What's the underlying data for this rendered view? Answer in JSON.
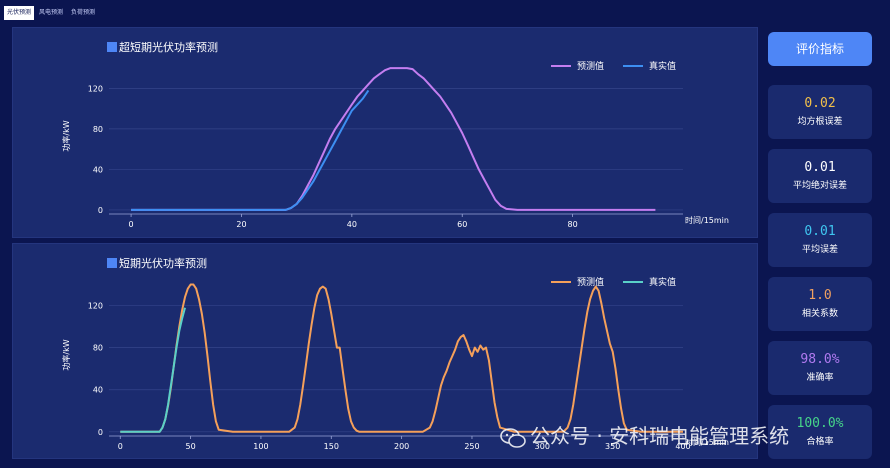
{
  "tabs": [
    "光伏预测",
    "风电预测",
    "负荷预测"
  ],
  "eval_button": "评价指标",
  "metrics": [
    {
      "value": "0.02",
      "label": "均方根误差",
      "color": "#f2c04a"
    },
    {
      "value": "0.01",
      "label": "平均绝对误差",
      "color": "#ffffff"
    },
    {
      "value": "0.01",
      "label": "平均误差",
      "color": "#3fc6f0"
    },
    {
      "value": "1.0",
      "label": "相关系数",
      "color": "#f0a060"
    },
    {
      "value": "98.0%",
      "label": "准确率",
      "color": "#b07af0"
    },
    {
      "value": "100.0%",
      "label": "合格率",
      "color": "#46d58a"
    }
  ],
  "watermark": "公众号 · 安科瑞电能管理系统",
  "colors": {
    "predict_top": "#c47ef0",
    "actual_top": "#3d8ff2",
    "predict_bottom": "#f5a05a",
    "actual_bottom": "#5ad0c8"
  },
  "chart_data": [
    {
      "type": "line",
      "title": "超短期光伏功率预测",
      "xlabel": "时间/15min",
      "ylabel": "功率/kW",
      "xlim": [
        -4,
        100
      ],
      "ylim": [
        -4,
        150
      ],
      "xticks": [
        0,
        20,
        40,
        60,
        80
      ],
      "yticks": [
        0,
        40,
        80,
        120
      ],
      "legend_position": "top-right",
      "series": [
        {
          "name": "预测值",
          "color": "#c47ef0",
          "x": [
            0,
            5,
            10,
            15,
            20,
            25,
            28,
            29,
            30,
            31,
            32,
            33,
            34,
            35,
            36,
            37,
            38,
            39,
            40,
            41,
            42,
            43,
            44,
            45,
            46,
            47,
            48,
            49,
            50,
            51,
            52,
            53,
            54,
            55,
            56,
            57,
            58,
            59,
            60,
            61,
            62,
            63,
            64,
            65,
            66,
            67,
            68,
            70,
            75,
            80,
            85,
            90,
            95
          ],
          "y": [
            0,
            0,
            0,
            0,
            0,
            0,
            0,
            2,
            6,
            14,
            24,
            34,
            46,
            58,
            70,
            80,
            88,
            96,
            104,
            112,
            118,
            124,
            130,
            134,
            138,
            140,
            140,
            140,
            140,
            139,
            134,
            130,
            124,
            118,
            112,
            104,
            96,
            86,
            76,
            64,
            52,
            40,
            30,
            20,
            10,
            4,
            1,
            0,
            0,
            0,
            0,
            0,
            0
          ]
        },
        {
          "name": "真实值",
          "color": "#3d8ff2",
          "x": [
            0,
            5,
            10,
            15,
            20,
            25,
            28,
            29,
            30,
            31,
            32,
            33,
            34,
            35,
            36,
            37,
            38,
            39,
            40,
            41,
            42,
            43
          ],
          "y": [
            0,
            0,
            0,
            0,
            0,
            0,
            0,
            2,
            6,
            12,
            20,
            28,
            38,
            48,
            58,
            68,
            78,
            88,
            98,
            104,
            110,
            118
          ]
        }
      ]
    },
    {
      "type": "line",
      "title": "短期光伏功率预测",
      "xlabel": "时间/15min",
      "ylabel": "功率/kW",
      "xlim": [
        -8,
        400
      ],
      "ylim": [
        -4,
        150
      ],
      "xticks": [
        0,
        50,
        100,
        150,
        200,
        250,
        300,
        350,
        400
      ],
      "yticks": [
        0,
        40,
        80,
        120
      ],
      "legend_position": "top-right",
      "series": [
        {
          "name": "预测值",
          "color": "#f5a05a",
          "x": [
            0,
            10,
            20,
            28,
            30,
            32,
            34,
            36,
            38,
            40,
            42,
            44,
            46,
            48,
            50,
            52,
            54,
            56,
            58,
            60,
            62,
            64,
            66,
            68,
            70,
            80,
            100,
            120,
            124,
            126,
            128,
            130,
            132,
            134,
            136,
            138,
            140,
            142,
            144,
            146,
            148,
            150,
            152,
            154,
            156,
            158,
            160,
            162,
            164,
            166,
            168,
            170,
            180,
            200,
            215,
            220,
            222,
            224,
            226,
            228,
            230,
            232,
            234,
            236,
            238,
            240,
            242,
            244,
            246,
            248,
            250,
            252,
            254,
            256,
            258,
            260,
            262,
            264,
            266,
            268,
            270,
            280,
            300,
            315,
            318,
            320,
            322,
            324,
            326,
            328,
            330,
            332,
            334,
            336,
            338,
            340,
            342,
            344,
            346,
            348,
            350,
            352,
            354,
            356,
            358,
            360,
            370,
            380,
            390,
            400
          ],
          "y": [
            0,
            0,
            0,
            0,
            4,
            12,
            25,
            42,
            62,
            82,
            100,
            116,
            128,
            136,
            140,
            140,
            136,
            126,
            112,
            94,
            72,
            48,
            26,
            10,
            2,
            0,
            0,
            0,
            4,
            12,
            26,
            44,
            64,
            84,
            102,
            118,
            130,
            136,
            138,
            136,
            126,
            112,
            96,
            80,
            80,
            60,
            40,
            22,
            10,
            4,
            1,
            0,
            0,
            0,
            0,
            4,
            10,
            20,
            32,
            44,
            52,
            58,
            66,
            72,
            78,
            86,
            90,
            92,
            86,
            78,
            72,
            80,
            76,
            82,
            78,
            80,
            68,
            48,
            28,
            14,
            4,
            0,
            0,
            0,
            4,
            12,
            26,
            44,
            62,
            80,
            98,
            114,
            126,
            134,
            138,
            134,
            122,
            108,
            96,
            84,
            76,
            60,
            40,
            22,
            8,
            2,
            0,
            0,
            0,
            0
          ]
        },
        {
          "name": "真实值",
          "color": "#5ad0c8",
          "x": [
            0,
            10,
            20,
            28,
            30,
            32,
            34,
            36,
            38,
            40,
            42,
            44,
            46
          ],
          "y": [
            0,
            0,
            0,
            0,
            4,
            12,
            26,
            44,
            62,
            80,
            96,
            108,
            118
          ]
        }
      ]
    }
  ]
}
